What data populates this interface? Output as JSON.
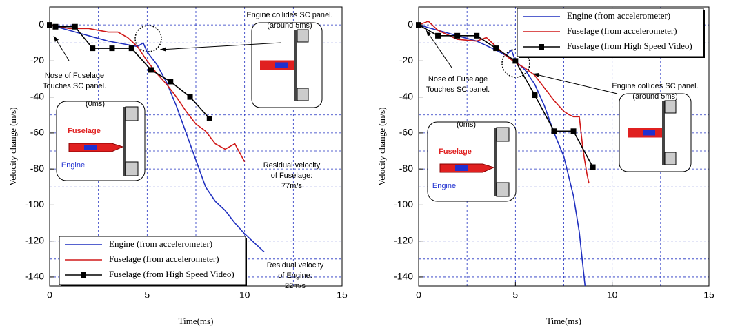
{
  "chart_data": [
    {
      "type": "line",
      "xlabel": "Time(ms)",
      "ylabel": "Velocity change (m/s)",
      "xlim": [
        0,
        15
      ],
      "ylim": [
        -145,
        10
      ],
      "xticks": [
        0,
        5,
        10,
        15
      ],
      "yticks": [
        0,
        -20,
        -40,
        -60,
        -80,
        -100,
        -120,
        -140
      ],
      "minor_xticks": [
        2.5,
        7.5,
        12.5
      ],
      "minor_yticks": [
        -10,
        -30,
        -50,
        -70,
        -90,
        -110,
        -130
      ],
      "grid": true,
      "legend": "lower left",
      "series": [
        {
          "name": "Engine (from accelerometer)",
          "color": "#1f2fbf",
          "marker": "none",
          "x": [
            0,
            1,
            2,
            3,
            4,
            4.5,
            4.8,
            5,
            5.5,
            6,
            6.5,
            7,
            7.5,
            8,
            8.5,
            9,
            9.5,
            10,
            10.5,
            11
          ],
          "values": [
            0,
            -3,
            -6,
            -9,
            -11,
            -12,
            -10,
            -15,
            -22,
            -32,
            -45,
            -60,
            -75,
            -90,
            -98,
            -103,
            -110,
            -116,
            -121,
            -126
          ]
        },
        {
          "name": "Fuselage (from accelerometer)",
          "color": "#d01818",
          "marker": "none",
          "x": [
            0,
            1,
            2,
            2.5,
            3,
            3.5,
            4,
            4.5,
            5,
            5.5,
            6,
            6.5,
            7,
            7.5,
            8,
            8.5,
            9,
            9.5,
            10
          ],
          "values": [
            0,
            -2,
            -2,
            -3,
            -4,
            -4,
            -7,
            -12,
            -20,
            -27,
            -33,
            -40,
            -48,
            -55,
            -59,
            -66,
            -69,
            -66,
            -76
          ]
        },
        {
          "name": "Fuselage (from High Speed Video)",
          "color": "#000000",
          "marker": "square",
          "x": [
            0,
            0.3,
            1.3,
            2.2,
            3.2,
            4.2,
            5.2,
            6.2,
            7.2,
            8.2
          ],
          "values": [
            0,
            -1,
            -1,
            -13,
            -13,
            -13,
            -25,
            -31.5,
            -40,
            -52
          ]
        }
      ],
      "annotations": [
        {
          "lines": [
            "Engine collides SC panel.",
            "(around 5ms)"
          ]
        },
        {
          "lines": [
            "Nose of Fuselage",
            "Touches SC panel."
          ]
        },
        {
          "lines": [
            "Residual velocity",
            "of Fuselage:",
            "77m/s"
          ]
        },
        {
          "lines": [
            "Residual velocity",
            "of Engine:",
            "22m/s"
          ]
        }
      ],
      "inset_labels": [
        "(0ms)",
        "Fuselage",
        "Engine"
      ]
    },
    {
      "type": "line",
      "xlabel": "Time(ms)",
      "ylabel": "Velocity change (m/s)",
      "xlim": [
        0,
        15
      ],
      "ylim": [
        -145,
        10
      ],
      "xticks": [
        0,
        5,
        10,
        15
      ],
      "yticks": [
        0,
        -20,
        -40,
        -60,
        -80,
        -100,
        -120,
        -140
      ],
      "minor_xticks": [
        2.5,
        7.5,
        12.5
      ],
      "minor_yticks": [
        -10,
        -30,
        -50,
        -70,
        -90,
        -110,
        -130
      ],
      "grid": true,
      "legend": "upper right",
      "series": [
        {
          "name": "Engine (from accelerometer)",
          "color": "#1f2fbf",
          "marker": "none",
          "x": [
            0,
            1,
            2,
            3,
            4,
            4.5,
            4.8,
            5,
            5.5,
            6,
            6.5,
            7,
            7.5,
            8,
            8.3,
            8.5,
            8.6
          ],
          "values": [
            0,
            -3,
            -6,
            -9,
            -14,
            -17,
            -14,
            -20,
            -25,
            -33,
            -45,
            -60,
            -73,
            -95,
            -115,
            -135,
            -145
          ]
        },
        {
          "name": "Fuselage (from accelerometer)",
          "color": "#d01818",
          "marker": "none",
          "x": [
            0,
            0.5,
            1,
            2,
            3,
            3.5,
            4,
            4.5,
            5,
            5.5,
            6,
            6.5,
            7,
            7.5,
            7.8,
            8,
            8.3,
            8.5,
            8.7,
            8.8
          ],
          "values": [
            0,
            2,
            -3,
            -8,
            -9,
            -7,
            -12,
            -17,
            -21,
            -24,
            -28,
            -35,
            -42,
            -48,
            -50,
            -51,
            -51,
            -70,
            -83,
            -88
          ]
        },
        {
          "name": "Fuselage (from High Speed Video)",
          "color": "#000000",
          "marker": "square",
          "x": [
            0,
            1,
            2,
            3,
            4,
            5,
            6,
            7,
            8,
            9
          ],
          "values": [
            0,
            -6,
            -6,
            -6,
            -13,
            -20,
            -39,
            -59,
            -59,
            -79
          ]
        }
      ],
      "annotations": [
        {
          "lines": [
            "Nose of Fuselage",
            "Touches SC panel."
          ]
        },
        {
          "lines": [
            "Engine collides SC panel.",
            "(around 5ms)"
          ]
        }
      ],
      "inset_labels": [
        "(0ms)",
        "Fuselage",
        "Engine"
      ]
    }
  ]
}
